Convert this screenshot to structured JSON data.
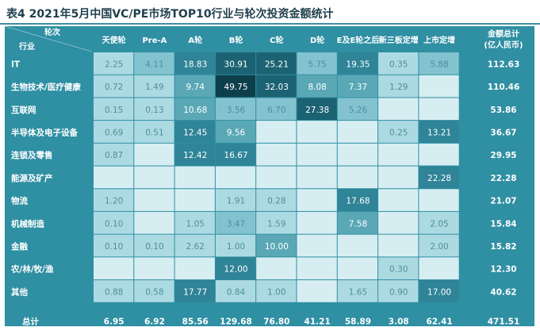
{
  "title": "表4   2021年5月中国VC/PE市场TOP10行业与轮次投资金额统计",
  "chart_data": {
    "type": "heatmap",
    "corner_top": "轮次",
    "corner_bottom": "行业",
    "columns": [
      "天使轮",
      "Pre-A",
      "A轮",
      "B轮",
      "C轮",
      "D轮",
      "E及E轮之后",
      "新三板定增",
      "上市定增"
    ],
    "total_header": [
      "金额总计",
      "(亿人民币)"
    ],
    "rows": [
      {
        "name": "IT",
        "values": [
          2.25,
          4.11,
          18.83,
          30.91,
          25.21,
          5.75,
          19.35,
          0.35,
          5.88
        ],
        "total": 112.63
      },
      {
        "name": "生物技术/医疗健康",
        "values": [
          0.72,
          1.49,
          9.74,
          49.75,
          32.03,
          8.08,
          7.37,
          1.29,
          null
        ],
        "total": 110.46
      },
      {
        "name": "互联网",
        "values": [
          0.15,
          0.13,
          10.68,
          3.56,
          6.7,
          27.38,
          5.26,
          null,
          null
        ],
        "total": 53.86
      },
      {
        "name": "半导体及电子设备",
        "values": [
          0.69,
          0.51,
          12.45,
          9.56,
          null,
          null,
          null,
          0.25,
          13.21
        ],
        "total": 36.67
      },
      {
        "name": "连锁及零售",
        "values": [
          0.87,
          null,
          12.42,
          16.67,
          null,
          null,
          null,
          null,
          null
        ],
        "total": 29.95
      },
      {
        "name": "能源及矿产",
        "values": [
          null,
          null,
          null,
          null,
          null,
          null,
          null,
          null,
          22.28
        ],
        "total": 22.28
      },
      {
        "name": "物流",
        "values": [
          1.2,
          null,
          null,
          1.91,
          0.28,
          null,
          17.68,
          null,
          null
        ],
        "total": 21.07
      },
      {
        "name": "机械制造",
        "values": [
          0.1,
          null,
          1.05,
          3.47,
          1.59,
          null,
          7.58,
          null,
          2.05
        ],
        "total": 15.84
      },
      {
        "name": "金融",
        "values": [
          0.1,
          0.1,
          2.62,
          1.0,
          10.0,
          null,
          null,
          null,
          2.0
        ],
        "total": 15.82
      },
      {
        "name": "农/林/牧/渔",
        "values": [
          null,
          null,
          null,
          12.0,
          null,
          null,
          null,
          0.3,
          null
        ],
        "total": 12.3
      },
      {
        "name": "其他",
        "values": [
          0.88,
          0.58,
          17.77,
          0.84,
          1.0,
          null,
          1.65,
          0.9,
          17.0
        ],
        "total": 40.62
      }
    ],
    "totals_row": {
      "label": "总计",
      "values": [
        6.95,
        6.92,
        85.56,
        129.68,
        76.8,
        41.21,
        58.89,
        3.08,
        62.41
      ],
      "total": 471.51
    },
    "colors": {
      "frame": "#2f8fa3",
      "empty_cell": "#d6eef2",
      "level_1": "#acdae2",
      "level_2": "#83c3cf",
      "level_3": "#5aa8b6",
      "level_4": "#2f8497",
      "level_5": "#1b6273",
      "level_6": "#0d3f4b"
    }
  }
}
